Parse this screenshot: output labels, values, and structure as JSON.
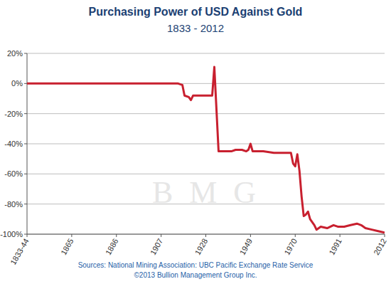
{
  "chart_data": {
    "type": "line",
    "title": "Purchasing Power of USD Against Gold",
    "subtitle": "1833 - 2012",
    "source": "Sources: National Mining Association: UBC Pacific Exchange Rate Service",
    "copyright": "©2013 Bullion Management Group Inc.",
    "watermark": "B M G",
    "x": [
      1844,
      1860,
      1880,
      1900,
      1915,
      1917,
      1918,
      1920,
      1921,
      1922,
      1925,
      1930,
      1931,
      1932,
      1934,
      1940,
      1942,
      1945,
      1947,
      1948,
      1949,
      1950,
      1955,
      1960,
      1965,
      1968,
      1969,
      1970,
      1971,
      1972,
      1973,
      1974,
      1975,
      1976,
      1977,
      1979,
      1980,
      1982,
      1985,
      1988,
      1990,
      1993,
      1996,
      1999,
      2001,
      2003,
      2006,
      2009,
      2012
    ],
    "values": [
      0,
      0,
      0,
      0,
      0,
      -1,
      -8,
      -9,
      -11,
      -8,
      -8,
      -8,
      -8,
      11,
      -45,
      -45,
      -44,
      -44,
      -45,
      -44,
      -40,
      -45,
      -45,
      -46,
      -46,
      -46,
      -53,
      -55,
      -47,
      -58,
      -75,
      -88,
      -87,
      -85,
      -90,
      -94,
      -97,
      -95,
      -96,
      -94,
      -95,
      -95,
      -94,
      -93,
      -94,
      -96,
      -97,
      -98,
      -99
    ],
    "color": "#c8202f",
    "xlim": [
      1844,
      2012
    ],
    "xticks": [
      {
        "value": 1844,
        "label": "1833-44"
      },
      1865,
      1886,
      1907,
      1928,
      1949,
      1970,
      1991,
      2012
    ],
    "ylim": [
      -100,
      20
    ],
    "yticks": [
      {
        "value": 20,
        "label": "20%"
      },
      {
        "value": 0,
        "label": "0%"
      },
      {
        "value": -20,
        "label": "-20%"
      },
      {
        "value": -40,
        "label": "-40%"
      },
      {
        "value": -60,
        "label": "-60%"
      },
      {
        "value": -80,
        "label": "-80%"
      },
      {
        "value": -100,
        "label": "-100%"
      }
    ],
    "grid": true
  }
}
